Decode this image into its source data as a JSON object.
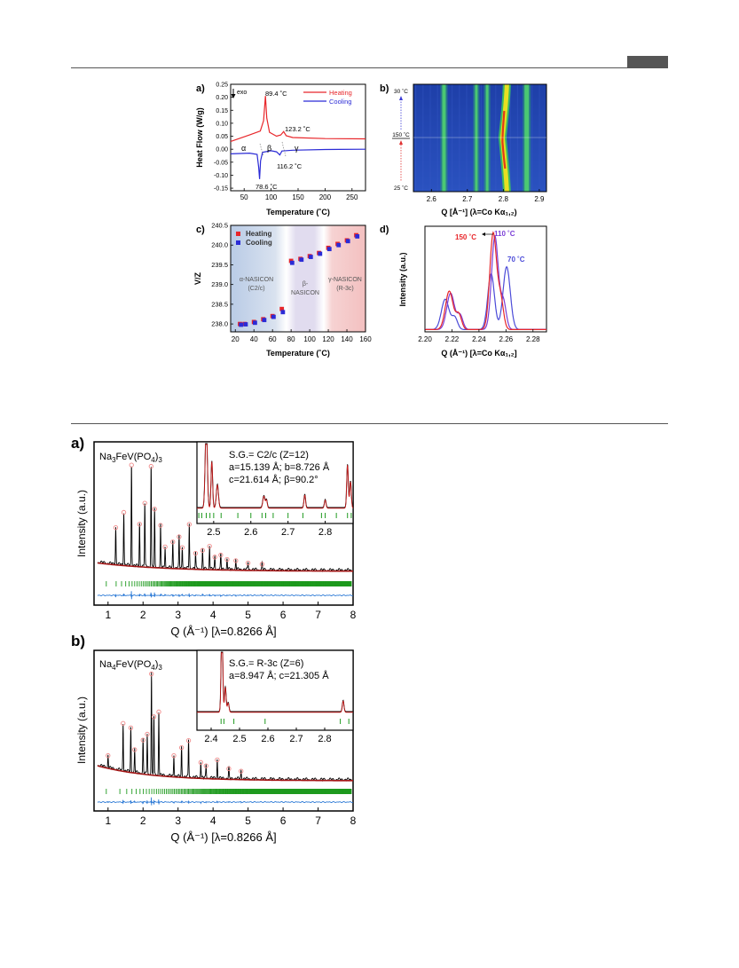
{
  "page": {
    "header_tab_color": "#555555"
  },
  "colors": {
    "heating": "#e8262a",
    "cooling": "#2b2bd6",
    "obs": "#d81e1e",
    "diff": "#2e7bd6",
    "ticks": "#1f9a1f",
    "v110": "#7b3fd6"
  },
  "panel_a": {
    "letter": "a)",
    "exo_label": "exo",
    "ylabel": "Heat Flow (W/g)",
    "xlabel": "Temperature (˚C)",
    "legend": [
      "Heating",
      "Cooling"
    ],
    "peak_labels": [
      "89.4 ˚C",
      "123.2 ˚C",
      "116.2 ˚C",
      "78.6 ˚C"
    ],
    "phase_labels": [
      "α",
      "β",
      "γ"
    ],
    "yticks": [
      "0.25",
      "0.20",
      "0.15",
      "0.10",
      "0.05",
      "0.00",
      "-0.05",
      "-0.10",
      "-0.15"
    ],
    "xticks": [
      "50",
      "100",
      "150",
      "200",
      "250"
    ],
    "chart_data": {
      "type": "line",
      "xlabel": "Temperature (˚C)",
      "ylabel": "Heat Flow (W/g)",
      "xlim": [
        25,
        275
      ],
      "ylim": [
        -0.16,
        0.25
      ],
      "series": [
        {
          "name": "Heating",
          "x": [
            25,
            60,
            80,
            86,
            89.4,
            92,
            97,
            110,
            118,
            123.2,
            128,
            140,
            200,
            275
          ],
          "y": [
            0.03,
            0.055,
            0.07,
            0.11,
            0.205,
            0.12,
            0.065,
            0.05,
            0.055,
            0.068,
            0.052,
            0.045,
            0.041,
            0.04
          ]
        },
        {
          "name": "Cooling",
          "x": [
            25,
            60,
            74,
            77,
            78.6,
            80.5,
            84,
            100,
            110,
            116.2,
            120,
            140,
            200,
            275
          ],
          "y": [
            -0.018,
            -0.015,
            -0.02,
            -0.07,
            -0.115,
            -0.045,
            -0.012,
            -0.006,
            -0.01,
            -0.022,
            -0.007,
            -0.004,
            -0.001,
            0.0
          ]
        }
      ]
    }
  },
  "panel_b": {
    "letter": "b)",
    "xlabel": "Q [Å⁻¹] (λ=Co Kα₁,₂)",
    "temp_labels": [
      "30 ˚C",
      "150 ˚C",
      "25 ˚C"
    ],
    "xticks": [
      "2.6",
      "2.7",
      "2.8",
      "2.9"
    ],
    "chart_data": {
      "type": "heatmap",
      "xlabel": "Q [Å⁻¹] (λ=Co Kα₁,₂)",
      "xlim": [
        2.55,
        2.92
      ],
      "line_q": [
        2.635,
        2.725,
        2.755,
        2.805,
        2.865
      ]
    }
  },
  "panel_c": {
    "letter": "c)",
    "ylabel": "V/Z",
    "xlabel": "Temperature (˚C)",
    "legend": [
      "Heating",
      "Cooling"
    ],
    "regions": {
      "alpha": [
        "α-NASICON",
        "(C2/c)"
      ],
      "beta": [
        "β-",
        "NASICON"
      ],
      "gamma": [
        "γ-NASICON",
        "(R-3c)"
      ]
    },
    "yticks": [
      "240.5",
      "240.0",
      "239.5",
      "239.0",
      "238.5",
      "238.0"
    ],
    "xticks": [
      "20",
      "40",
      "60",
      "80",
      "100",
      "120",
      "140",
      "160"
    ],
    "chart_data": {
      "type": "scatter",
      "xlabel": "Temperature (˚C)",
      "ylabel": "V/Z",
      "xlim": [
        15,
        160
      ],
      "ylim": [
        237.8,
        240.5
      ],
      "series": [
        {
          "name": "Heating",
          "x": [
            25,
            30,
            40,
            50,
            60,
            70,
            80,
            90,
            100,
            110,
            120,
            130,
            140,
            150
          ],
          "y": [
            238.0,
            238.0,
            238.05,
            238.12,
            238.2,
            238.38,
            239.6,
            239.65,
            239.72,
            239.8,
            239.93,
            240.03,
            240.12,
            240.25
          ]
        },
        {
          "name": "Cooling",
          "x": [
            25,
            30,
            40,
            50,
            60,
            70,
            80,
            90,
            100,
            110,
            120,
            130,
            140,
            150
          ],
          "y": [
            237.98,
            237.99,
            238.03,
            238.1,
            238.18,
            238.3,
            239.55,
            239.63,
            239.7,
            239.78,
            239.9,
            240.0,
            240.1,
            240.22
          ]
        }
      ]
    }
  },
  "panel_d": {
    "letter": "d)",
    "ylabel": "Intensity (a.u.)",
    "xlabel": "Q (Å⁻¹) [λ=Co Kα₁,₂]",
    "temp_labels": [
      "150 ˚C",
      "110 ˚C",
      "70 ˚C"
    ],
    "xticks": [
      "2.20",
      "2.22",
      "2.24",
      "2.26",
      "2.28"
    ],
    "chart_data": {
      "type": "line",
      "xlabel": "Q (Å⁻¹) [λ=Co Kα₁,₂]",
      "ylabel": "Intensity (a.u.)",
      "xlim": [
        2.2,
        2.29
      ],
      "series": [
        {
          "name": "150 ˚C",
          "peaks": [
            [
              2.218,
              0.38,
              0.004
            ],
            [
              2.225,
              0.15,
              0.003
            ],
            [
              2.2505,
              0.95,
              0.0035
            ],
            [
              2.256,
              0.3,
              0.003
            ]
          ]
        },
        {
          "name": "110 ˚C",
          "peaks": [
            [
              2.219,
              0.36,
              0.004
            ],
            [
              2.226,
              0.14,
              0.003
            ],
            [
              2.2518,
              0.92,
              0.0035
            ],
            [
              2.258,
              0.28,
              0.003
            ]
          ]
        },
        {
          "name": "70 ˚C",
          "peaks": [
            [
              2.215,
              0.3,
              0.004
            ],
            [
              2.222,
              0.12,
              0.003
            ],
            [
              2.249,
              0.55,
              0.0035
            ],
            [
              2.2605,
              0.62,
              0.0038
            ]
          ]
        }
      ]
    }
  },
  "rietveld_a": {
    "letter": "a)",
    "formula": "Na3FeV(PO4)3",
    "ylabel": "Intensity (a.u.)",
    "xlabel": "Q (Å⁻¹) [λ=0.8266 Å]",
    "info": [
      "S.G.= C2/c (Z=12)",
      "a=15.139 Å; b=8.726 Å",
      "c=21.614 Å; β=90.2°"
    ],
    "xticks": [
      "1",
      "2",
      "3",
      "4",
      "5",
      "6",
      "7",
      "8"
    ],
    "inset_xticks": [
      "2.5",
      "2.6",
      "2.7",
      "2.8"
    ],
    "chart_data": {
      "type": "line",
      "xlabel": "Q (Å⁻¹) [λ=0.8266 Å]",
      "ylabel": "Intensity (a.u.)",
      "xlim": [
        0.6,
        8
      ],
      "peaks": [
        [
          1.22,
          0.35
        ],
        [
          1.45,
          0.5
        ],
        [
          1.67,
          0.95
        ],
        [
          1.9,
          0.4
        ],
        [
          2.05,
          0.6
        ],
        [
          2.23,
          0.95
        ],
        [
          2.33,
          0.55
        ],
        [
          2.5,
          0.4
        ],
        [
          2.63,
          0.2
        ],
        [
          2.85,
          0.25
        ],
        [
          3.03,
          0.3
        ],
        [
          3.12,
          0.2
        ],
        [
          3.32,
          0.42
        ],
        [
          3.5,
          0.15
        ],
        [
          3.7,
          0.18
        ],
        [
          3.9,
          0.22
        ],
        [
          4.05,
          0.12
        ],
        [
          4.22,
          0.14
        ],
        [
          4.4,
          0.1
        ],
        [
          4.65,
          0.09
        ],
        [
          5.0,
          0.07
        ],
        [
          5.4,
          0.06
        ]
      ]
    }
  },
  "rietveld_b": {
    "letter": "b)",
    "formula": "Na4FeV(PO4)3",
    "ylabel": "Intensity (a.u.)",
    "xlabel": "Q (Å⁻¹) [λ=0.8266 Å]",
    "info": [
      "S.G.= R-3c (Z=6)",
      "a=8.947 Å; c=21.305 Å"
    ],
    "xticks": [
      "1",
      "2",
      "3",
      "4",
      "5",
      "6",
      "7",
      "8"
    ],
    "inset_xticks": [
      "2.4",
      "2.5",
      "2.6",
      "2.7",
      "2.8"
    ],
    "chart_data": {
      "type": "line",
      "xlabel": "Q (Å⁻¹) [λ=0.8266 Å]",
      "ylabel": "Intensity (a.u.)",
      "xlim": [
        0.6,
        8
      ],
      "peaks": [
        [
          1.0,
          0.12
        ],
        [
          1.43,
          0.45
        ],
        [
          1.65,
          0.42
        ],
        [
          1.76,
          0.22
        ],
        [
          2.0,
          0.32
        ],
        [
          2.12,
          0.38
        ],
        [
          2.24,
          0.95
        ],
        [
          2.31,
          0.55
        ],
        [
          2.45,
          0.6
        ],
        [
          2.88,
          0.2
        ],
        [
          3.1,
          0.28
        ],
        [
          3.3,
          0.35
        ],
        [
          3.65,
          0.15
        ],
        [
          3.8,
          0.12
        ],
        [
          4.12,
          0.18
        ],
        [
          4.45,
          0.1
        ],
        [
          4.8,
          0.08
        ]
      ]
    }
  }
}
